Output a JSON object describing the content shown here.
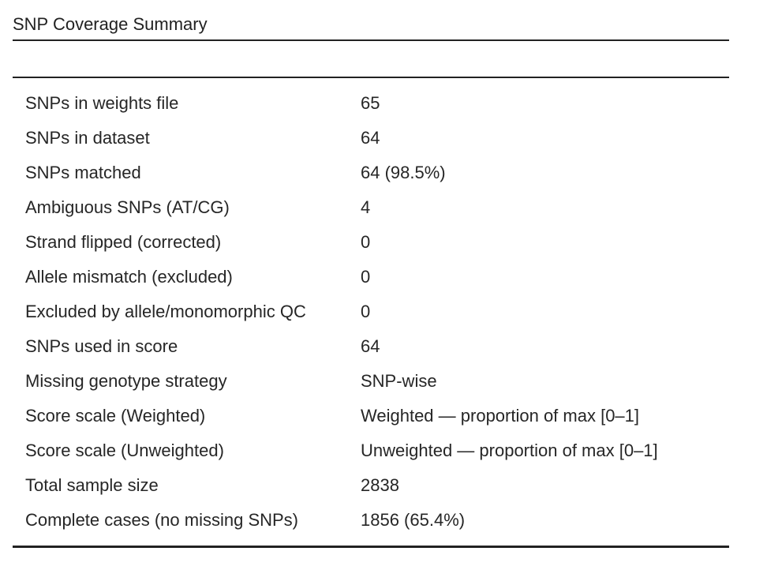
{
  "table": {
    "caption": "SNP Coverage Summary",
    "rows": [
      {
        "label": "SNPs in weights file",
        "value": "65"
      },
      {
        "label": "SNPs in dataset",
        "value": "64"
      },
      {
        "label": "SNPs matched",
        "value": "64 (98.5%)"
      },
      {
        "label": "Ambiguous SNPs (AT/CG)",
        "value": "4"
      },
      {
        "label": "Strand flipped (corrected)",
        "value": "0"
      },
      {
        "label": "Allele mismatch (excluded)",
        "value": "0"
      },
      {
        "label": "Excluded by allele/monomorphic QC",
        "value": "0"
      },
      {
        "label": "SNPs used in score",
        "value": "64"
      },
      {
        "label": "Missing genotype strategy",
        "value": "SNP-wise"
      },
      {
        "label": "Score scale (Weighted)",
        "value": "Weighted — proportion of max [0–1]"
      },
      {
        "label": "Score scale (Unweighted)",
        "value": "Unweighted — proportion of max [0–1]"
      },
      {
        "label": "Total sample size",
        "value": "2838"
      },
      {
        "label": "Complete cases (no missing SNPs)",
        "value": "1856 (65.4%)"
      }
    ]
  }
}
